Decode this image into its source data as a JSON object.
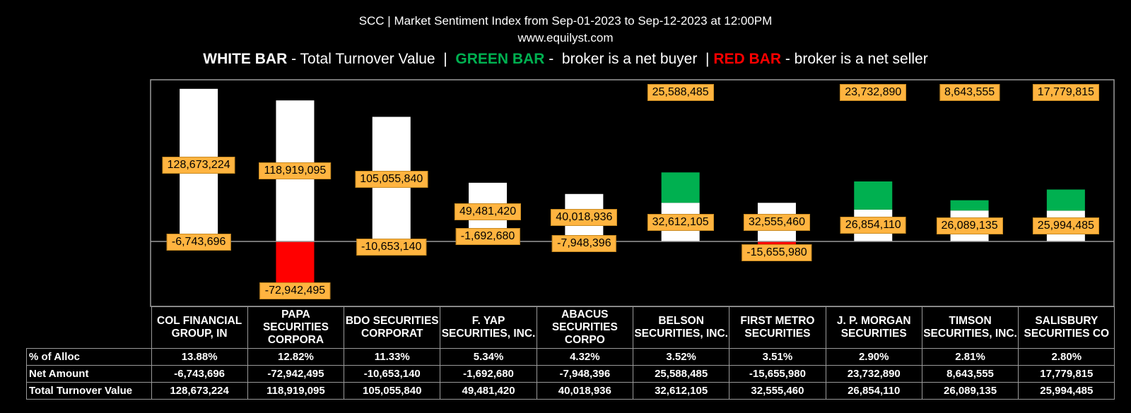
{
  "title_line1": "SCC | Market Sentiment Index from Sep-01-2023 to Sep-12-2023 at 12:00PM",
  "title_line2": "www.equilyst.com",
  "legend": {
    "white_key": "WHITE BAR",
    "white_text": " - Total Turnover Value  |  ",
    "green_key": "GREEN BAR",
    "green_text": " -  broker is a net buyer  | ",
    "red_key": "RED BAR",
    "red_text": " - broker is a net seller"
  },
  "colors": {
    "white_bar": "#ffffff",
    "green_bar": "#00b050",
    "red_bar": "#ff0000",
    "label_bg": "#ffb440",
    "background": "#000000"
  },
  "table": {
    "row_labels": [
      "% of Alloc",
      "Net Amount",
      "Total Turnover Value"
    ]
  },
  "chart_data": {
    "type": "bar",
    "categories": [
      "COL FINANCIAL GROUP, IN",
      "PAPA SECURITIES CORPORA",
      "BDO SECURITIES CORPORAT",
      "F. YAP SECURITIES, INC.",
      "ABACUS SECURITIES CORPO",
      "BELSON SECURITIES, INC.",
      "FIRST METRO SECURITIES",
      "J. P. MORGAN SECURITIES",
      "TIMSON SECURITIES, INC.",
      "SALISBURY SECURITIES CO"
    ],
    "series": [
      {
        "name": "Total Turnover Value",
        "values": [
          128673224,
          118919095,
          105055840,
          49481420,
          40018936,
          32612105,
          32555460,
          26854110,
          26089135,
          25994485
        ]
      },
      {
        "name": "Net Amount",
        "values": [
          -6743696,
          -72942495,
          -10653140,
          -1692680,
          -7948396,
          25588485,
          -15655980,
          23732890,
          8643555,
          17779815
        ]
      }
    ],
    "pct_alloc": [
      "13.88%",
      "12.82%",
      "11.33%",
      "5.34%",
      "4.32%",
      "3.52%",
      "3.51%",
      "2.90%",
      "2.81%",
      "2.80%"
    ],
    "net_amount_text": [
      "-6,743,696",
      "-72,942,495",
      "-10,653,140",
      "-1,692,680",
      "-7,948,396",
      "25,588,485",
      "-15,655,980",
      "23,732,890",
      "8,643,555",
      "17,779,815"
    ],
    "turnover_text": [
      "128,673,224",
      "118,919,095",
      "105,055,840",
      "49,481,420",
      "40,018,936",
      "32,612,105",
      "32,555,460",
      "26,854,110",
      "26,089,135",
      "25,994,485"
    ]
  }
}
